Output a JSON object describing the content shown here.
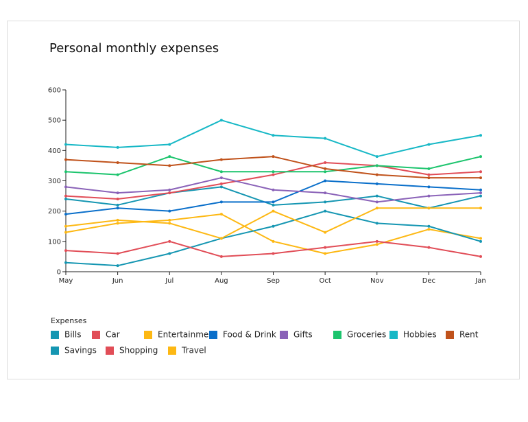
{
  "chart_data": {
    "type": "line",
    "title": "Personal monthly expenses",
    "legend_title": "Expenses",
    "legend_position": "bottom",
    "categories": [
      "May",
      "Jun",
      "Jul",
      "Aug",
      "Sep",
      "Oct",
      "Nov",
      "Dec",
      "Jan"
    ],
    "ylim": [
      0,
      600
    ],
    "yticks": [
      0,
      100,
      200,
      300,
      400,
      500,
      600
    ],
    "grid": false,
    "series": [
      {
        "name": "Bills",
        "color": "#1596b2",
        "values": [
          240,
          220,
          260,
          280,
          220,
          230,
          250,
          210,
          250
        ]
      },
      {
        "name": "Car",
        "color": "#e14d57",
        "values": [
          250,
          240,
          260,
          290,
          320,
          360,
          350,
          320,
          330
        ]
      },
      {
        "name": "Entertainment",
        "color": "#fdb813",
        "values": [
          130,
          160,
          170,
          190,
          100,
          60,
          90,
          140,
          110
        ]
      },
      {
        "name": "Food & Drink",
        "color": "#0a6fca",
        "values": [
          190,
          210,
          200,
          230,
          230,
          300,
          290,
          280,
          270
        ]
      },
      {
        "name": "Gifts",
        "color": "#8a62b8",
        "values": [
          280,
          260,
          270,
          310,
          270,
          260,
          230,
          250,
          260
        ]
      },
      {
        "name": "Groceries",
        "color": "#1cc46d",
        "values": [
          330,
          320,
          380,
          330,
          330,
          330,
          350,
          340,
          380
        ]
      },
      {
        "name": "Hobbies",
        "color": "#17b8c6",
        "values": [
          420,
          410,
          420,
          500,
          450,
          440,
          380,
          420,
          450
        ]
      },
      {
        "name": "Rent",
        "color": "#c0521b",
        "values": [
          370,
          360,
          350,
          370,
          380,
          340,
          320,
          310,
          310
        ]
      },
      {
        "name": "Savings",
        "color": "#1596b2",
        "values": [
          30,
          20,
          60,
          110,
          150,
          200,
          160,
          150,
          100
        ]
      },
      {
        "name": "Shopping",
        "color": "#e14d57",
        "values": [
          70,
          60,
          100,
          50,
          60,
          80,
          100,
          80,
          50
        ]
      },
      {
        "name": "Travel",
        "color": "#fdb813",
        "values": [
          150,
          170,
          160,
          110,
          200,
          130,
          210,
          210,
          210
        ]
      }
    ]
  }
}
